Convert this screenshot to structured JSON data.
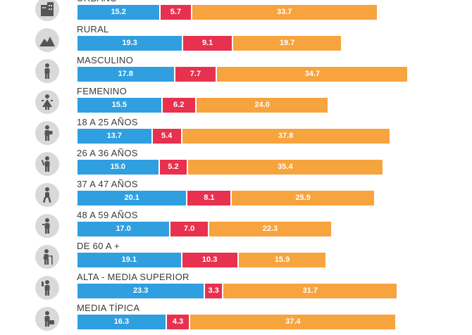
{
  "colors": {
    "series1": "#2f9fe0",
    "series2": "#e8304f",
    "series3": "#f7a33e",
    "icon_bg": "#d9d9d9",
    "icon_fg": "#555555"
  },
  "chart_data": {
    "type": "bar",
    "stacked": true,
    "orientation": "horizontal",
    "categories": [
      "URBANO",
      "RURAL",
      "MASCULINO",
      "FEMENINO",
      "18 A 25 AÑOS",
      "26 A 36 AÑOS",
      "37 A 47 AÑOS",
      "48 A 59 AÑOS",
      "DE 60 A +",
      "ALTA - MEDIA SUPERIOR",
      "MEDIA TÍPICA"
    ],
    "icons": [
      "building-icon",
      "mountains-icon",
      "man-icon",
      "woman-icon",
      "young-person-icon",
      "adult-person-icon",
      "walking-person-icon",
      "middle-aged-person-icon",
      "elderly-person-icon",
      "upper-class-person-icon",
      "middle-class-person-icon"
    ],
    "series": [
      {
        "values": [
          15.2,
          19.3,
          17.8,
          15.5,
          13.7,
          15.0,
          20.1,
          17.0,
          19.1,
          23.3,
          16.3
        ]
      },
      {
        "values": [
          5.7,
          9.1,
          7.7,
          6.2,
          5.4,
          5.2,
          8.1,
          7.0,
          10.3,
          3.3,
          4.3
        ]
      },
      {
        "values": [
          33.7,
          19.7,
          34.7,
          24.0,
          37.8,
          35.4,
          25.9,
          22.3,
          15.9,
          31.7,
          37.4
        ]
      }
    ],
    "value_labels": [
      [
        "15.2",
        "19.3",
        "17.8",
        "15.5",
        "13.7",
        "15.0",
        "20.1",
        "17.0",
        "19.1",
        "23.3",
        "16.3"
      ],
      [
        "5.7",
        "9.1",
        "7.7",
        "6.2",
        "5.4",
        "5.2",
        "8.1",
        "7.0",
        "10.3",
        "3.3",
        "4.3"
      ],
      [
        "33.7",
        "19.7",
        "34.7",
        "24.0",
        "37.8",
        "35.4",
        "25.9",
        "22.3",
        "15.9",
        "31.7",
        "37.4"
      ]
    ],
    "title": "",
    "xlabel": "",
    "ylabel": "",
    "grid": false
  }
}
